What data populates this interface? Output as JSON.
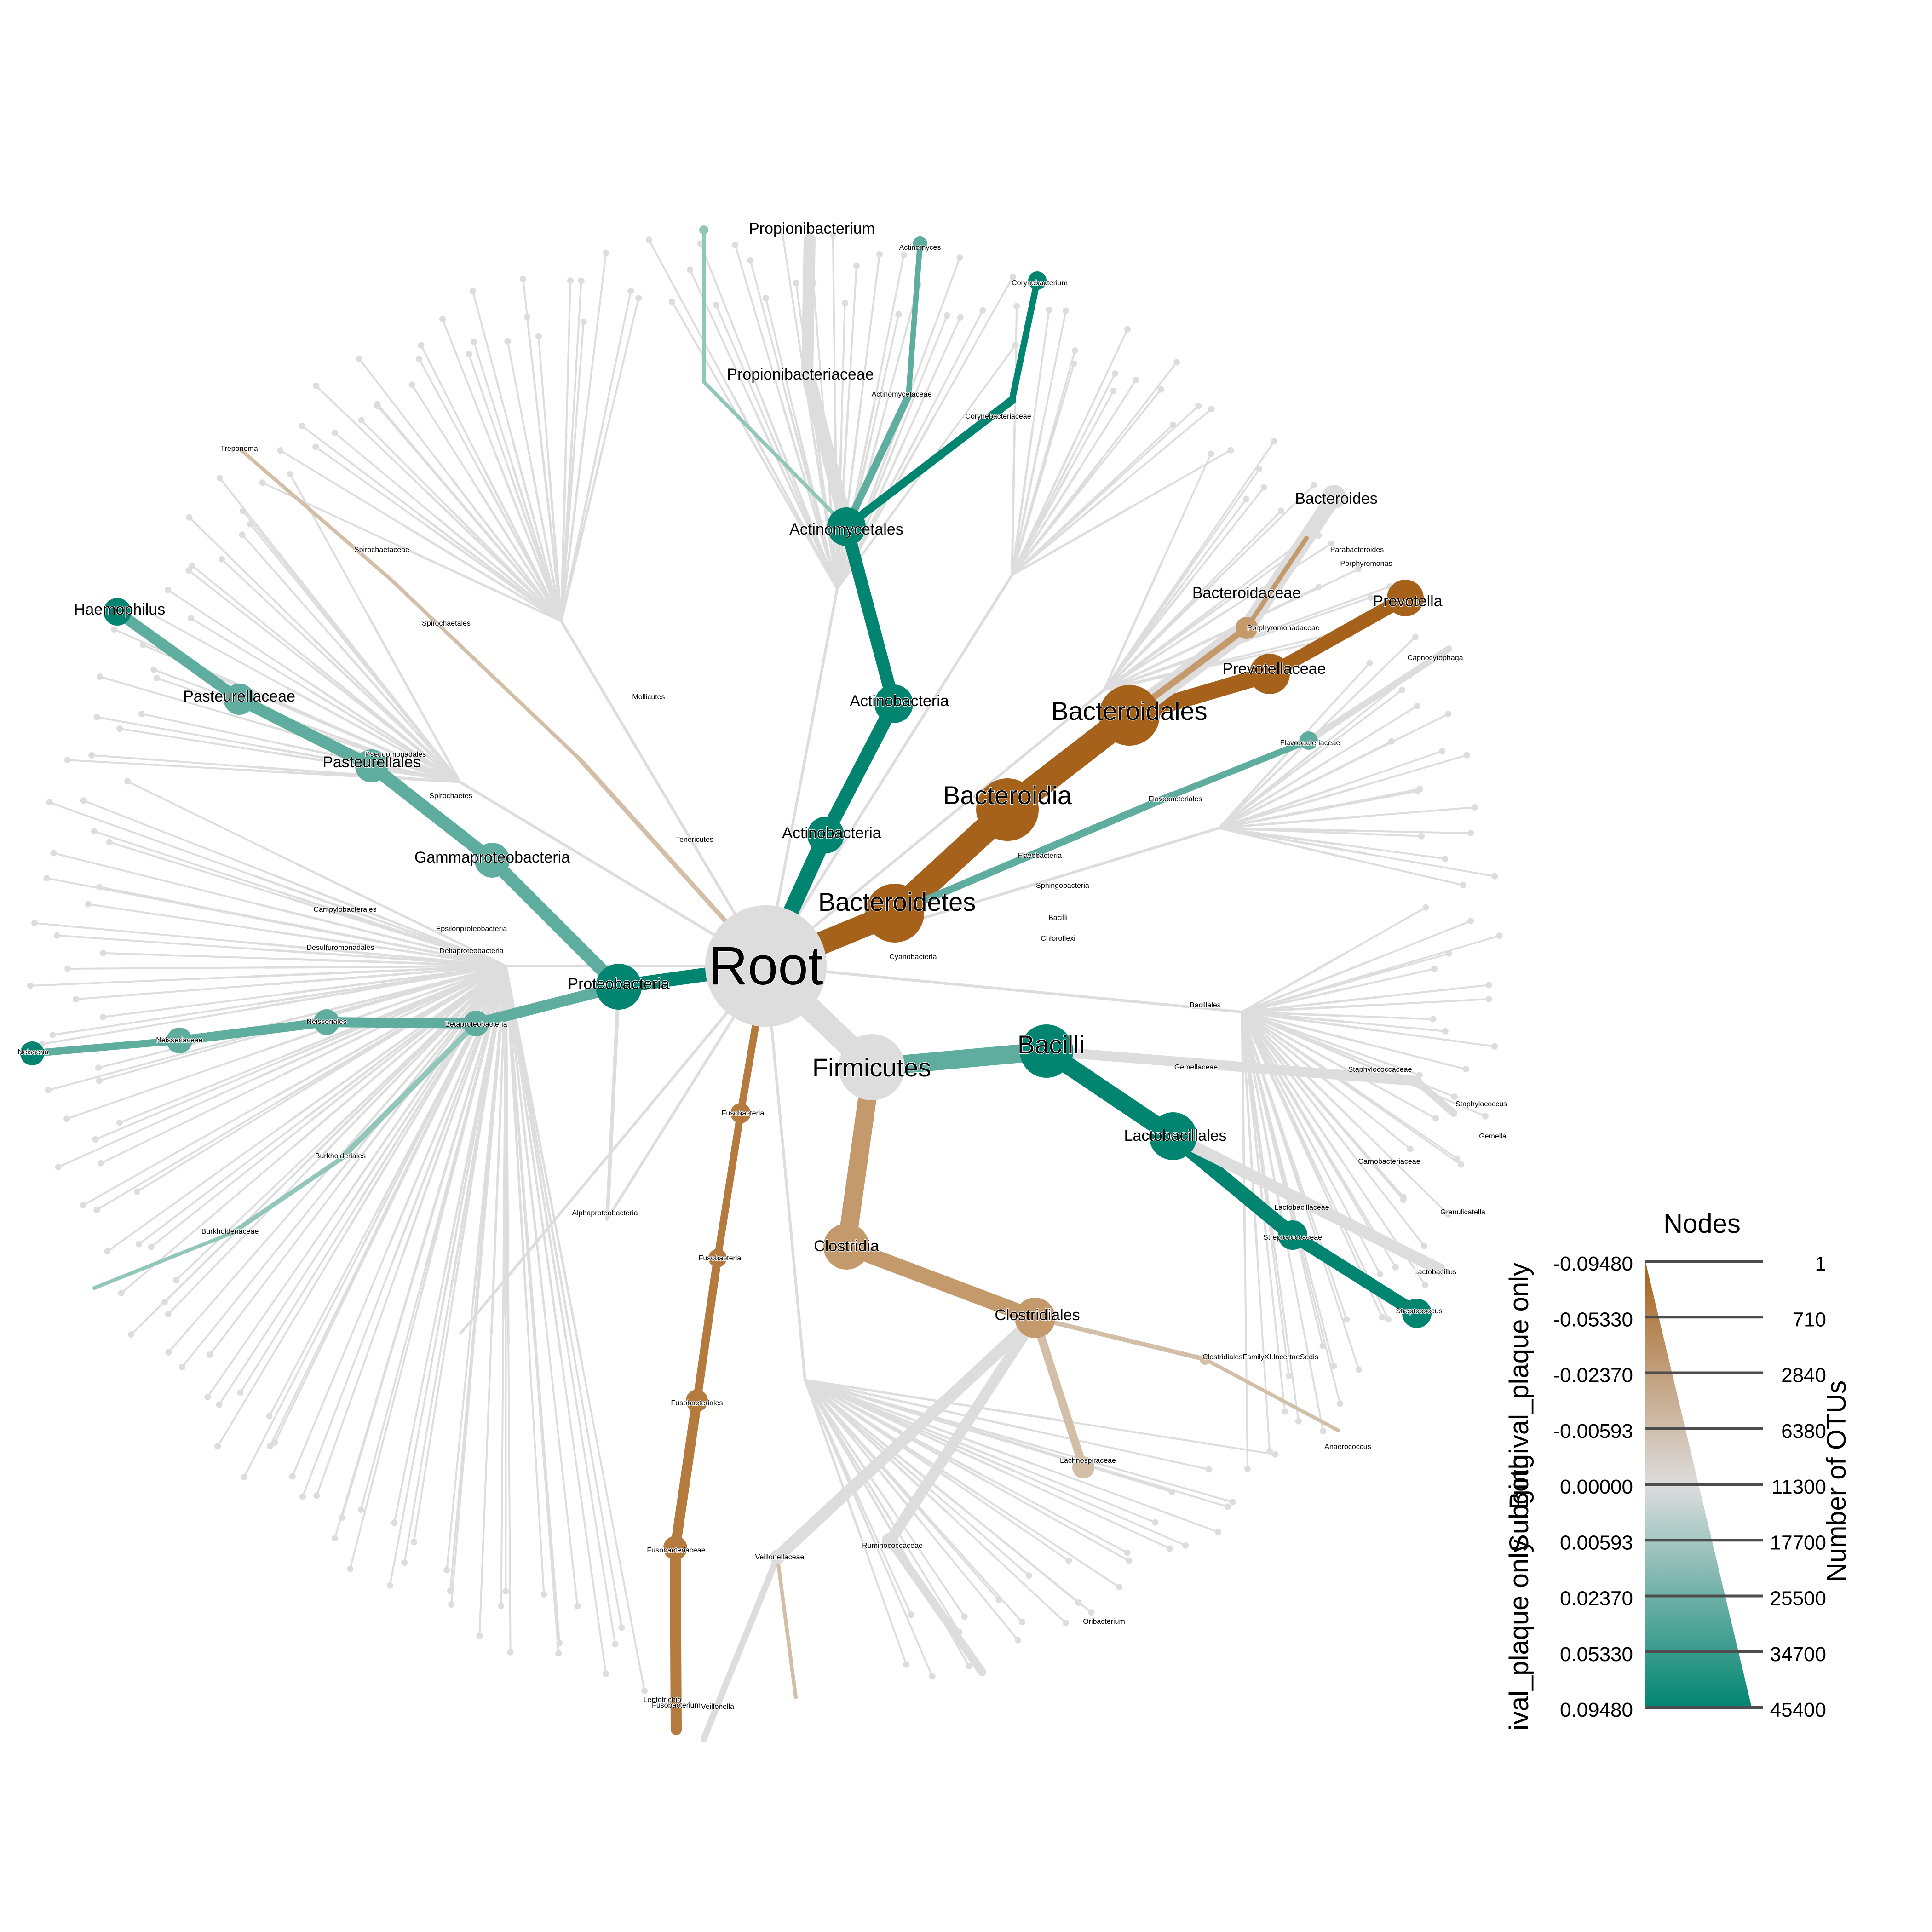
{
  "tree": {
    "root_label": "Root",
    "labeled_nodes": [
      {
        "label": "Actinomycetales",
        "size": 1
      },
      {
        "label": "Actinobacteria",
        "size": 1
      },
      {
        "label": "Actinobacteria",
        "size": 1
      },
      {
        "label": "Propionibacterium",
        "size": 1
      },
      {
        "label": "Propionibacteriaceae",
        "size": 1
      },
      {
        "label": "Actinomyces",
        "size": 0
      },
      {
        "label": "Actinomycetaceae",
        "size": 0
      },
      {
        "label": "Corynebacterium",
        "size": 0
      },
      {
        "label": "Corynebacteriaceae",
        "size": 0
      },
      {
        "label": "Bacteroides",
        "size": 1
      },
      {
        "label": "Bacteroidaceae",
        "size": 1
      },
      {
        "label": "Porphyromonadaceae",
        "size": 0
      },
      {
        "label": "Porphyromonas",
        "size": 0
      },
      {
        "label": "Parabacteroides",
        "size": 0
      },
      {
        "label": "Prevotella",
        "size": 1
      },
      {
        "label": "Prevotellaceae",
        "size": 1
      },
      {
        "label": "Bacteroidales",
        "size": 2
      },
      {
        "label": "Bacteroidia",
        "size": 2
      },
      {
        "label": "Bacteroidetes",
        "size": 2
      },
      {
        "label": "Capnocytophaga",
        "size": 0
      },
      {
        "label": "Flavobacteriaceae",
        "size": 0
      },
      {
        "label": "Flavobacteriales",
        "size": 0
      },
      {
        "label": "Flavobacteria",
        "size": 0
      },
      {
        "label": "Haemophilus",
        "size": 1
      },
      {
        "label": "Pasteurellaceae",
        "size": 1
      },
      {
        "label": "Pasteurellales",
        "size": 1
      },
      {
        "label": "Gammaproteobacteria",
        "size": 1
      },
      {
        "label": "Proteobacteria",
        "size": 1
      },
      {
        "label": "Neisseria",
        "size": 0
      },
      {
        "label": "Neisseriaceae",
        "size": 0
      },
      {
        "label": "Neisseriales",
        "size": 0
      },
      {
        "label": "Betaproteobacteria",
        "size": 0
      },
      {
        "label": "Burkholderiales",
        "size": 0
      },
      {
        "label": "Burkholderiaceae",
        "size": 0
      },
      {
        "label": "Alphaproteobacteria",
        "size": 0
      },
      {
        "label": "Campylobacterales",
        "size": 0
      },
      {
        "label": "Epsilonproteobacteria",
        "size": 0
      },
      {
        "label": "Deltaproteobacteria",
        "size": 0
      },
      {
        "label": "Desulfuromonadales",
        "size": 0
      },
      {
        "label": "Pseudomonadales",
        "size": 0
      },
      {
        "label": "Spirochaetes",
        "size": 0
      },
      {
        "label": "Spirochaetales",
        "size": 0
      },
      {
        "label": "Spirochaetaceae",
        "size": 0
      },
      {
        "label": "Treponema",
        "size": 0
      },
      {
        "label": "Tenericutes",
        "size": 0
      },
      {
        "label": "Mollicutes",
        "size": 0
      },
      {
        "label": "Fusobacteria",
        "size": 0
      },
      {
        "label": "Fusobacteria",
        "size": 0
      },
      {
        "label": "Fusobacteriales",
        "size": 0
      },
      {
        "label": "Fusobacteriaceae",
        "size": 0
      },
      {
        "label": "Leptotrichia",
        "size": 0
      },
      {
        "label": "Fusobacterium",
        "size": 0
      },
      {
        "label": "Veillonella",
        "size": 0
      },
      {
        "label": "Veillonellaceae",
        "size": 0
      },
      {
        "label": "Firmicutes",
        "size": 2
      },
      {
        "label": "Bacilli",
        "size": 2
      },
      {
        "label": "Bacillales",
        "size": 0
      },
      {
        "label": "Staphylococcaceae",
        "size": 0
      },
      {
        "label": "Staphylococcus",
        "size": 0
      },
      {
        "label": "Gemellaceae",
        "size": 0
      },
      {
        "label": "Gemella",
        "size": 0
      },
      {
        "label": "Lactobacillales",
        "size": 1
      },
      {
        "label": "Lactobacillaceae",
        "size": 0
      },
      {
        "label": "Lactobacillus",
        "size": 0
      },
      {
        "label": "Streptococcaceae",
        "size": 0
      },
      {
        "label": "Streptococcus",
        "size": 0
      },
      {
        "label": "Carnobacteriaceae",
        "size": 0
      },
      {
        "label": "Granulicatella",
        "size": 0
      },
      {
        "label": "Clostridia",
        "size": 1
      },
      {
        "label": "Clostridiales",
        "size": 1
      },
      {
        "label": "ClostridialesFamilyXI.IncertaeSedis",
        "size": 0
      },
      {
        "label": "Anaerococcus",
        "size": 0
      },
      {
        "label": "Lachnospiraceae",
        "size": 0
      },
      {
        "label": "Ruminococcaceae",
        "size": 0
      },
      {
        "label": "Oribacterium",
        "size": 0
      },
      {
        "label": "Sphingobacteria",
        "size": 0
      },
      {
        "label": "Chloroflexi",
        "size": 0
      },
      {
        "label": "Cyanobacteria",
        "size": 0
      },
      {
        "label": "Bacilli",
        "size": 0
      }
    ]
  },
  "legend": {
    "nodes_title": "Nodes",
    "otus_title": "Number of OTUs",
    "otu_values": [
      "1",
      "710",
      "2840",
      "6380",
      "11300",
      "17700",
      "25500",
      "34700",
      "45400"
    ],
    "color_values": [
      "-0.09480",
      "-0.05330",
      "-0.02370",
      "-0.00593",
      "0.00000",
      "0.00593",
      "0.02370",
      "0.05330",
      "0.09480"
    ],
    "group_top": "Subgingival_plaque only",
    "group_mid": "Both",
    "group_bottom": "ival_plaque only",
    "colors": {
      "subgingival": "#a6611a",
      "neutral": "#dddddd",
      "supragingival": "#018571",
      "line": "#4d4d4d"
    }
  }
}
